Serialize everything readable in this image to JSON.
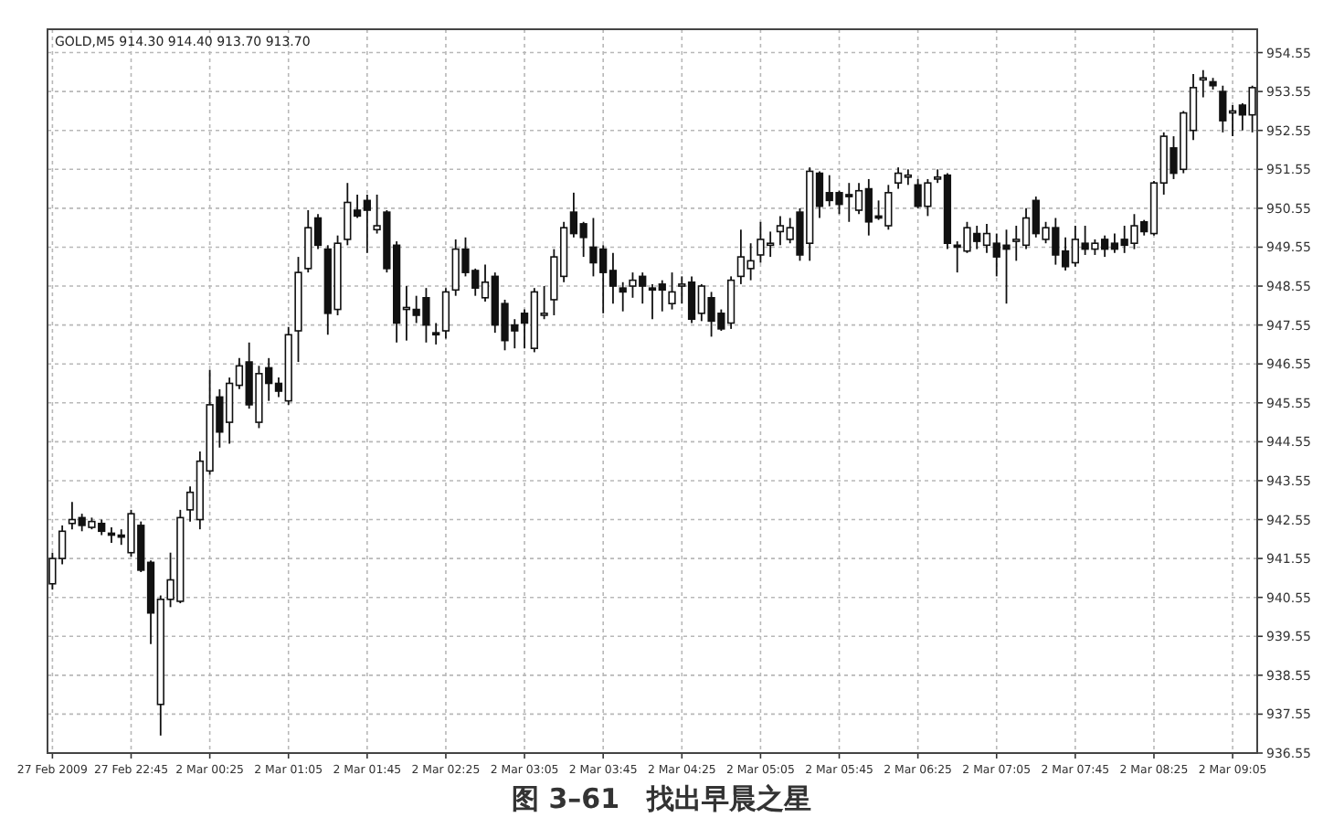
{
  "chart_data": {
    "type": "candlestick",
    "title": "GOLD,M5 914.30 914.40 913.70 913.70",
    "annotations": [
      "图 3–61　找出早晨之星"
    ],
    "categories": [
      "27 Feb 2009",
      null,
      null,
      null,
      null,
      null,
      null,
      null,
      "27 Feb 22:45",
      null,
      null,
      null,
      null,
      null,
      null,
      null,
      "2 Mar 00:25",
      null,
      null,
      null,
      null,
      null,
      null,
      null,
      "2 Mar 01:05",
      null,
      null,
      null,
      null,
      null,
      null,
      null,
      "2 Mar 01:45",
      null,
      null,
      null,
      null,
      null,
      null,
      null,
      "2 Mar 02:25",
      null,
      null,
      null,
      null,
      null,
      null,
      null,
      "2 Mar 03:05",
      null,
      null,
      null,
      null,
      null,
      null,
      null,
      "2 Mar 03:45",
      null,
      null,
      null,
      null,
      null,
      null,
      null,
      "2 Mar 04:25",
      null,
      null,
      null,
      null,
      null,
      null,
      null,
      "2 Mar 05:05",
      null,
      null,
      null,
      null,
      null,
      null,
      null,
      "2 Mar 05:45",
      null,
      null,
      null,
      null,
      null,
      null,
      null,
      "2 Mar 06:25",
      null,
      null,
      null,
      null,
      null,
      null,
      null,
      "2 Mar 07:05",
      null,
      null,
      null,
      null,
      null,
      null,
      null,
      "2 Mar 07:45",
      null,
      null,
      null,
      null,
      null,
      null,
      null,
      "2 Mar 08:25",
      null,
      null,
      null,
      null,
      null,
      null,
      null,
      "2 Mar 09:05",
      null,
      null
    ],
    "ohlc": [
      [
        940.9,
        941.7,
        940.75,
        941.55
      ],
      [
        941.55,
        942.4,
        941.4,
        942.25
      ],
      [
        942.45,
        943.0,
        942.3,
        942.55
      ],
      [
        942.6,
        942.7,
        942.25,
        942.4
      ],
      [
        942.35,
        942.6,
        942.3,
        942.5
      ],
      [
        942.45,
        942.55,
        942.15,
        942.25
      ],
      [
        942.2,
        942.35,
        941.95,
        942.15
      ],
      [
        942.15,
        942.3,
        941.9,
        942.1
      ],
      [
        941.7,
        942.8,
        941.6,
        942.7
      ],
      [
        942.4,
        942.5,
        941.2,
        941.25
      ],
      [
        941.45,
        941.5,
        939.35,
        940.15
      ],
      [
        937.8,
        940.6,
        937.0,
        940.5
      ],
      [
        940.5,
        941.7,
        940.3,
        941.0
      ],
      [
        940.45,
        942.8,
        940.4,
        942.6
      ],
      [
        942.8,
        943.4,
        942.5,
        943.25
      ],
      [
        942.55,
        944.3,
        942.3,
        944.05
      ],
      [
        943.8,
        946.4,
        943.7,
        945.5
      ],
      [
        945.7,
        945.9,
        944.4,
        944.8
      ],
      [
        945.05,
        946.2,
        944.5,
        946.05
      ],
      [
        946.0,
        946.7,
        945.9,
        946.5
      ],
      [
        946.6,
        947.1,
        945.4,
        945.5
      ],
      [
        945.05,
        946.5,
        944.9,
        946.3
      ],
      [
        946.45,
        946.7,
        945.6,
        946.05
      ],
      [
        946.05,
        946.2,
        945.7,
        945.85
      ],
      [
        945.6,
        947.5,
        945.5,
        947.3
      ],
      [
        947.4,
        949.3,
        946.6,
        948.9
      ],
      [
        949.0,
        950.5,
        948.9,
        950.05
      ],
      [
        950.3,
        950.4,
        949.5,
        949.6
      ],
      [
        949.5,
        949.6,
        947.3,
        947.85
      ],
      [
        947.95,
        949.85,
        947.8,
        949.65
      ],
      [
        949.75,
        951.2,
        949.6,
        950.7
      ],
      [
        950.5,
        950.9,
        950.3,
        950.35
      ],
      [
        950.75,
        950.9,
        949.4,
        950.5
      ],
      [
        950.0,
        950.9,
        949.9,
        950.1
      ],
      [
        950.45,
        950.5,
        948.9,
        949.0
      ],
      [
        949.6,
        949.7,
        947.1,
        947.6
      ],
      [
        947.95,
        948.55,
        947.15,
        948.0
      ],
      [
        947.95,
        948.3,
        947.6,
        947.8
      ],
      [
        948.25,
        948.5,
        947.1,
        947.55
      ],
      [
        947.35,
        947.6,
        947.05,
        947.3
      ],
      [
        947.4,
        948.5,
        947.2,
        948.4
      ],
      [
        948.45,
        949.75,
        948.3,
        949.5
      ],
      [
        949.5,
        949.8,
        948.8,
        948.9
      ],
      [
        948.95,
        949.0,
        948.3,
        948.5
      ],
      [
        948.25,
        949.1,
        948.15,
        948.65
      ],
      [
        948.8,
        948.9,
        947.35,
        947.55
      ],
      [
        948.1,
        948.2,
        946.9,
        947.15
      ],
      [
        947.55,
        947.7,
        946.95,
        947.4
      ],
      [
        947.85,
        947.95,
        946.95,
        947.6
      ],
      [
        946.95,
        948.5,
        946.85,
        948.4
      ],
      [
        947.8,
        948.55,
        947.7,
        947.85
      ],
      [
        948.2,
        949.5,
        947.8,
        949.3
      ],
      [
        948.8,
        950.2,
        948.65,
        950.05
      ],
      [
        950.45,
        950.95,
        949.8,
        949.9
      ],
      [
        950.15,
        950.2,
        949.3,
        949.8
      ],
      [
        949.55,
        950.3,
        948.8,
        949.15
      ],
      [
        949.5,
        949.6,
        947.85,
        948.9
      ],
      [
        948.95,
        949.4,
        948.1,
        948.55
      ],
      [
        948.5,
        948.65,
        947.9,
        948.4
      ],
      [
        948.55,
        948.9,
        948.25,
        948.7
      ],
      [
        948.8,
        948.9,
        948.1,
        948.55
      ],
      [
        948.5,
        948.6,
        947.7,
        948.45
      ],
      [
        948.6,
        948.7,
        947.9,
        948.45
      ],
      [
        948.1,
        948.9,
        947.95,
        948.4
      ],
      [
        948.55,
        948.8,
        948.1,
        948.6
      ],
      [
        948.65,
        948.8,
        947.6,
        947.7
      ],
      [
        947.85,
        948.6,
        947.65,
        948.55
      ],
      [
        948.25,
        948.4,
        947.25,
        947.65
      ],
      [
        947.85,
        947.95,
        947.4,
        947.45
      ],
      [
        947.6,
        948.8,
        947.45,
        948.7
      ],
      [
        948.8,
        950.0,
        948.6,
        949.3
      ],
      [
        949.0,
        949.65,
        948.7,
        949.2
      ],
      [
        949.35,
        950.2,
        949.15,
        949.75
      ],
      [
        949.6,
        949.95,
        949.3,
        949.65
      ],
      [
        949.95,
        950.35,
        949.6,
        950.1
      ],
      [
        949.75,
        950.3,
        949.65,
        950.05
      ],
      [
        950.45,
        950.55,
        949.2,
        949.35
      ],
      [
        949.65,
        951.6,
        949.2,
        951.5
      ],
      [
        951.45,
        951.5,
        950.3,
        950.6
      ],
      [
        950.95,
        951.4,
        950.6,
        950.75
      ],
      [
        950.95,
        951.0,
        950.4,
        950.65
      ],
      [
        950.9,
        951.2,
        950.2,
        950.85
      ],
      [
        950.5,
        951.2,
        950.4,
        951.0
      ],
      [
        951.05,
        951.3,
        949.85,
        950.2
      ],
      [
        950.35,
        950.75,
        950.25,
        950.3
      ],
      [
        950.1,
        951.15,
        950.0,
        950.95
      ],
      [
        951.2,
        951.6,
        951.05,
        951.45
      ],
      [
        951.35,
        951.55,
        951.15,
        951.4
      ],
      [
        951.15,
        951.3,
        950.55,
        950.6
      ],
      [
        950.6,
        951.3,
        950.35,
        951.2
      ],
      [
        951.3,
        951.55,
        951.2,
        951.35
      ],
      [
        951.4,
        951.45,
        949.5,
        949.65
      ],
      [
        949.6,
        949.7,
        948.9,
        949.55
      ],
      [
        949.45,
        950.2,
        949.4,
        950.05
      ],
      [
        949.9,
        950.1,
        949.5,
        949.7
      ],
      [
        949.6,
        950.15,
        949.4,
        949.9
      ],
      [
        949.65,
        949.9,
        948.8,
        949.3
      ],
      [
        949.6,
        950.0,
        948.1,
        949.5
      ],
      [
        949.7,
        950.1,
        949.2,
        949.75
      ],
      [
        949.6,
        950.55,
        949.5,
        950.3
      ],
      [
        950.75,
        950.85,
        949.8,
        949.9
      ],
      [
        949.75,
        950.2,
        949.65,
        950.05
      ],
      [
        950.05,
        950.3,
        949.1,
        949.35
      ],
      [
        949.45,
        949.8,
        948.95,
        949.05
      ],
      [
        949.15,
        950.1,
        949.05,
        949.75
      ],
      [
        949.65,
        950.1,
        949.35,
        949.5
      ],
      [
        949.5,
        949.75,
        949.35,
        949.65
      ],
      [
        949.75,
        949.85,
        949.3,
        949.5
      ],
      [
        949.65,
        949.9,
        949.4,
        949.5
      ],
      [
        949.75,
        950.1,
        949.4,
        949.6
      ],
      [
        949.65,
        950.4,
        949.5,
        950.1
      ],
      [
        950.2,
        950.25,
        949.85,
        949.95
      ],
      [
        949.9,
        951.25,
        949.85,
        951.2
      ],
      [
        951.2,
        952.5,
        950.9,
        952.4
      ],
      [
        952.1,
        952.4,
        951.3,
        951.45
      ],
      [
        951.55,
        953.05,
        951.45,
        953.0
      ],
      [
        952.55,
        954.0,
        952.3,
        953.65
      ],
      [
        953.85,
        954.1,
        953.4,
        953.9
      ],
      [
        953.8,
        953.9,
        953.6,
        953.7
      ],
      [
        953.55,
        953.7,
        952.5,
        952.8
      ],
      [
        953.0,
        953.2,
        952.4,
        953.05
      ],
      [
        953.2,
        953.25,
        952.55,
        952.95
      ],
      [
        952.95,
        953.7,
        952.5,
        953.65
      ]
    ],
    "ylim": [
      936.55,
      955.15
    ],
    "yticks": [
      936.55,
      937.55,
      938.55,
      939.55,
      940.55,
      941.55,
      942.55,
      943.55,
      944.55,
      945.55,
      946.55,
      947.55,
      948.55,
      949.55,
      950.55,
      951.55,
      952.55,
      953.55,
      954.55
    ],
    "grid": true
  }
}
